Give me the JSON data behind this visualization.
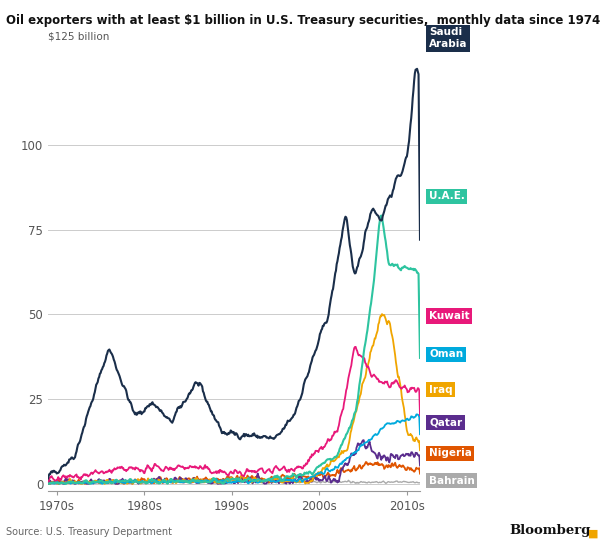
{
  "title": "Oil exporters with at least $1 billion in U.S. Treasury securities,  monthly data since 1974",
  "ylabel": "$125 billion",
  "source": "Source: U.S. Treasury Department",
  "bloomberg": "Bloomberg",
  "background_color": "#ffffff",
  "plot_bg_color": "#ffffff",
  "grid_color": "#cccccc",
  "xlim": [
    1974,
    2016.5
  ],
  "ylim": [
    -2,
    130
  ],
  "yticks": [
    0,
    25,
    50,
    75,
    100
  ],
  "xtick_labels": [
    "1970s",
    "1980s",
    "1990s",
    "2000s",
    "2010s"
  ],
  "xtick_positions": [
    1975,
    1985,
    1995,
    2005,
    2015
  ],
  "series": {
    "Saudi Arabia": {
      "color": "#1a2e4a",
      "lw": 1.5,
      "box_color": "#1a2e4a"
    },
    "U.A.E.": {
      "color": "#2ec4a0",
      "lw": 1.5,
      "box_color": "#2ec4a0"
    },
    "Kuwait": {
      "color": "#e8197a",
      "lw": 1.3,
      "box_color": "#e8197a"
    },
    "Oman": {
      "color": "#00aadd",
      "lw": 1.3,
      "box_color": "#00aadd"
    },
    "Iraq": {
      "color": "#f0a500",
      "lw": 1.3,
      "box_color": "#f0a500"
    },
    "Qatar": {
      "color": "#5b2d8e",
      "lw": 1.3,
      "box_color": "#5b2d8e"
    },
    "Nigeria": {
      "color": "#e05500",
      "lw": 1.3,
      "box_color": "#e05500"
    },
    "Bahrain": {
      "color": "#aaaaaa",
      "lw": 1.0,
      "box_color": "#aaaaaa"
    }
  },
  "labels": [
    {
      "name": "Saudi\nArabia",
      "key": "Saudi Arabia",
      "y_data": 123,
      "x_data": 2016.3
    },
    {
      "name": "U.A.E.",
      "key": "U.A.E.",
      "y_data": 62,
      "x_data": 2016.3
    },
    {
      "name": "Kuwait",
      "key": "Kuwait",
      "y_data": 27,
      "x_data": 2016.3
    },
    {
      "name": "Oman",
      "key": "Oman",
      "y_data": 20,
      "x_data": 2016.3
    },
    {
      "name": "Iraq",
      "key": "Iraq",
      "y_data": 14,
      "x_data": 2016.3
    },
    {
      "name": "Qatar",
      "key": "Qatar",
      "y_data": 8,
      "x_data": 2016.3
    },
    {
      "name": "Nigeria",
      "key": "Nigeria",
      "y_data": 3,
      "x_data": 2016.3
    },
    {
      "name": "Bahrain",
      "key": "Bahrain",
      "y_data": 0.5,
      "x_data": 2016.3
    }
  ]
}
